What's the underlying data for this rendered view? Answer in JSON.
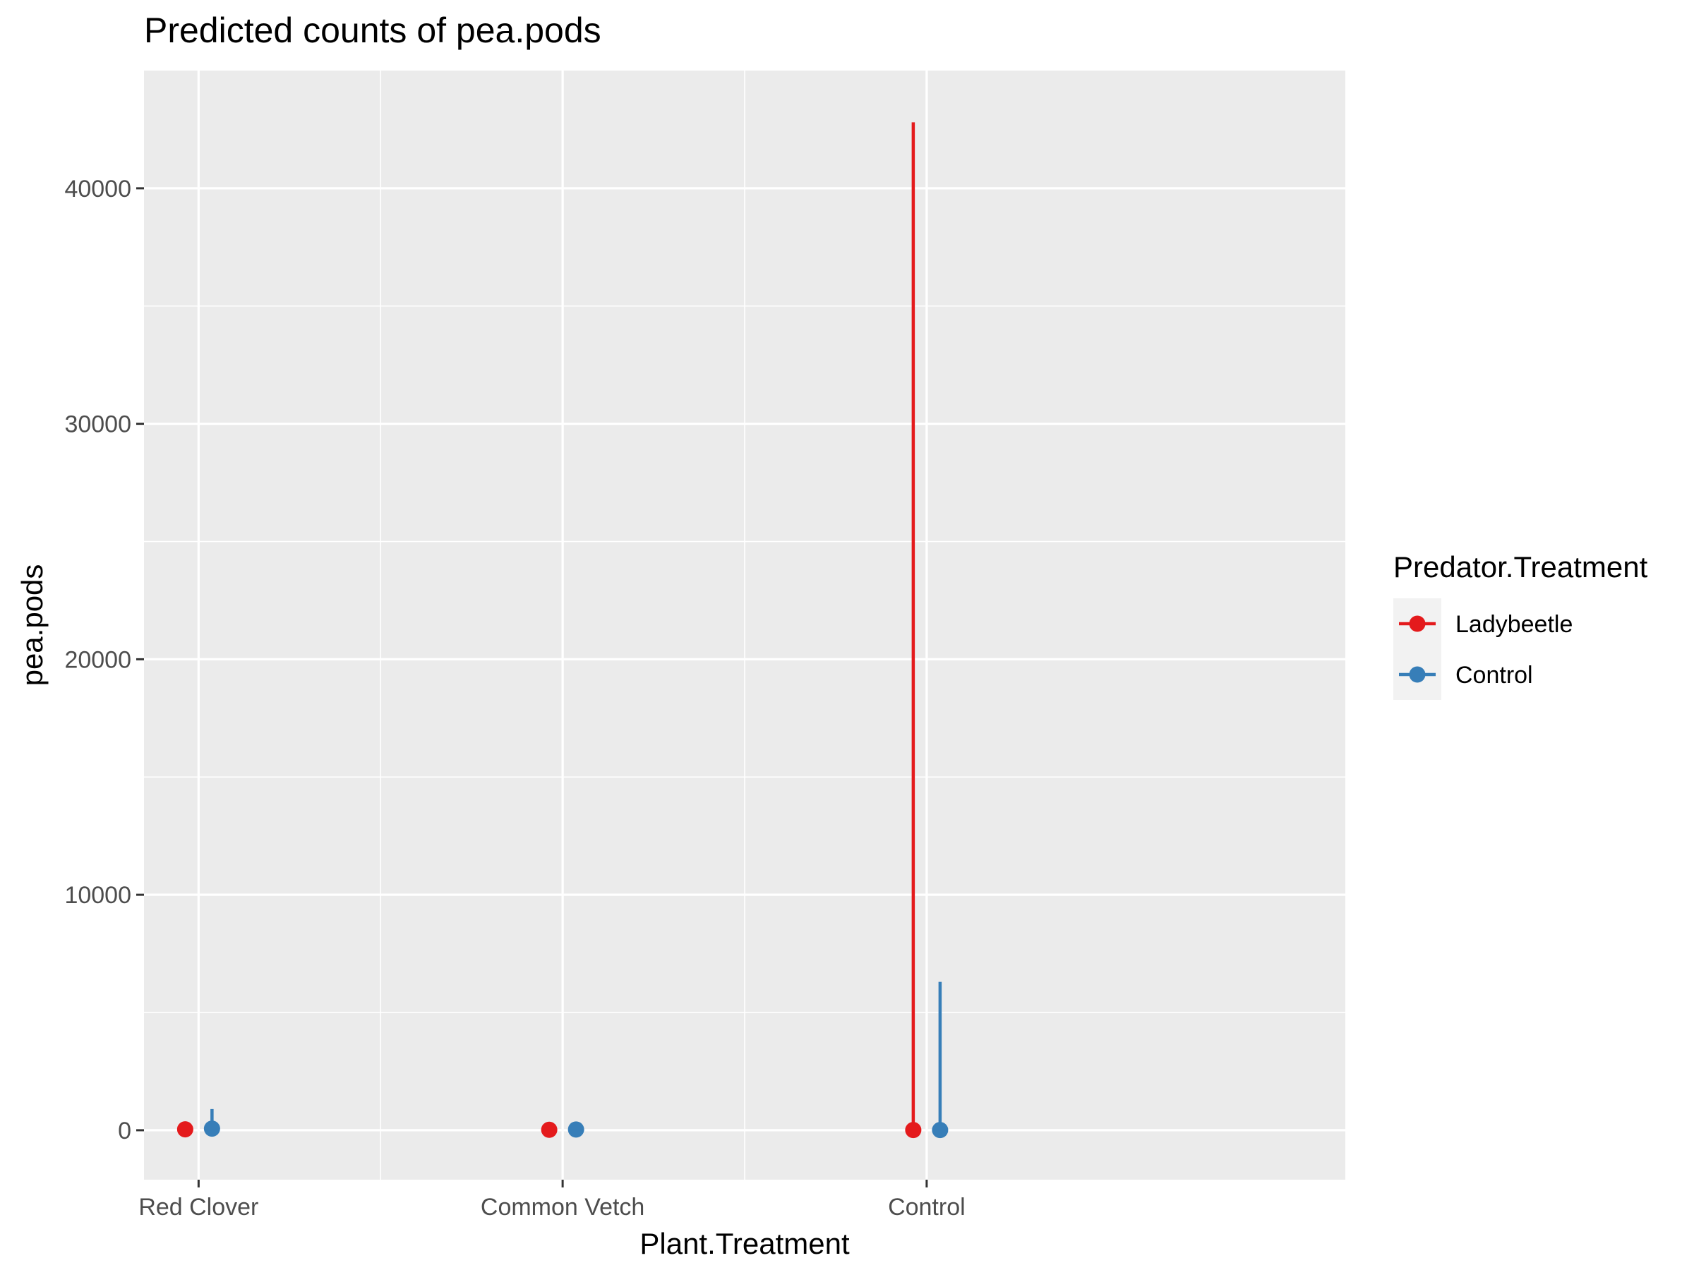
{
  "chart_data": {
    "type": "scatter",
    "title": "Predicted counts of pea.pods",
    "xlabel": "Plant.Treatment",
    "ylabel": "pea.pods",
    "categories": [
      "Red Clover",
      "Common Vetch",
      "Control"
    ],
    "ylim": [
      -2100,
      45000
    ],
    "y_ticks": [
      0,
      10000,
      20000,
      30000,
      40000
    ],
    "y_tick_labels": [
      "0",
      "10000",
      "20000",
      "30000",
      "40000"
    ],
    "grid": true,
    "legend": {
      "title": "Predator.Treatment",
      "position": "right"
    },
    "series": [
      {
        "name": "Ladybeetle",
        "color": "#e41a1c",
        "values": [
          40,
          20,
          10
        ],
        "lower": [
          0,
          0,
          0
        ],
        "upper": [
          250,
          80,
          42800
        ]
      },
      {
        "name": "Control",
        "color": "#377eb8",
        "values": [
          70,
          30,
          10
        ],
        "lower": [
          0,
          0,
          0
        ],
        "upper": [
          900,
          120,
          6300
        ]
      }
    ]
  }
}
